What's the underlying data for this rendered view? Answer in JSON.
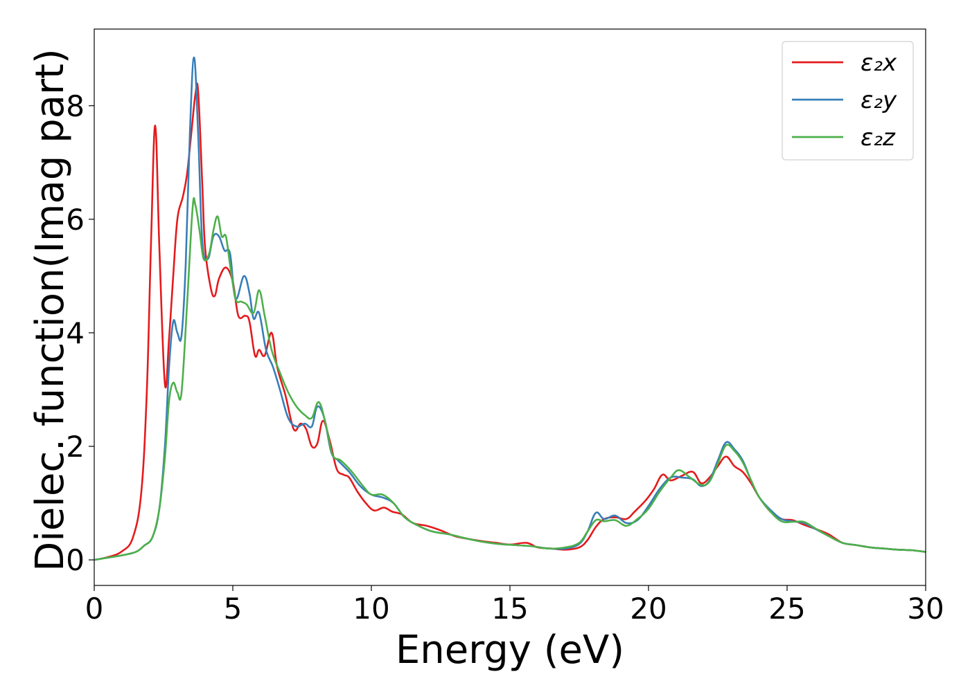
{
  "chart_data": {
    "type": "line",
    "title": "",
    "xlabel": "Energy (eV)",
    "ylabel": "Dielec. function(Imag part)",
    "xlim": [
      0,
      30
    ],
    "ylim": [
      -0.45,
      9.35
    ],
    "xticks": [
      0,
      5,
      10,
      15,
      20,
      25,
      30
    ],
    "yticks": [
      0,
      2,
      4,
      6,
      8
    ],
    "grid": false,
    "legend_position": "top-right",
    "series": [
      {
        "name": "ε₂x",
        "color": "#e41a1c",
        "points": [
          [
            0,
            0
          ],
          [
            0.5,
            0.05
          ],
          [
            1,
            0.15
          ],
          [
            1.4,
            0.4
          ],
          [
            1.7,
            1.2
          ],
          [
            1.9,
            3.0
          ],
          [
            2.05,
            5.6
          ],
          [
            2.2,
            7.65
          ],
          [
            2.35,
            5.5
          ],
          [
            2.55,
            3.1
          ],
          [
            2.7,
            3.9
          ],
          [
            2.85,
            5.0
          ],
          [
            3.0,
            6.0
          ],
          [
            3.2,
            6.4
          ],
          [
            3.35,
            6.8
          ],
          [
            3.5,
            7.5
          ],
          [
            3.65,
            8.2
          ],
          [
            3.75,
            8.25
          ],
          [
            3.9,
            6.6
          ],
          [
            4.0,
            5.5
          ],
          [
            4.2,
            4.8
          ],
          [
            4.35,
            4.65
          ],
          [
            4.5,
            4.95
          ],
          [
            4.75,
            5.15
          ],
          [
            5.0,
            4.9
          ],
          [
            5.2,
            4.3
          ],
          [
            5.45,
            4.3
          ],
          [
            5.6,
            4.2
          ],
          [
            5.8,
            3.6
          ],
          [
            5.95,
            3.7
          ],
          [
            6.15,
            3.6
          ],
          [
            6.4,
            4.0
          ],
          [
            6.6,
            3.4
          ],
          [
            6.9,
            2.9
          ],
          [
            7.2,
            2.3
          ],
          [
            7.45,
            2.4
          ],
          [
            7.65,
            2.3
          ],
          [
            7.85,
            2.0
          ],
          [
            8.05,
            2.05
          ],
          [
            8.25,
            2.45
          ],
          [
            8.5,
            2.1
          ],
          [
            8.75,
            1.6
          ],
          [
            9.0,
            1.5
          ],
          [
            9.2,
            1.45
          ],
          [
            9.5,
            1.2
          ],
          [
            9.8,
            1.0
          ],
          [
            10.1,
            0.87
          ],
          [
            10.45,
            0.92
          ],
          [
            10.75,
            0.85
          ],
          [
            11.1,
            0.8
          ],
          [
            11.5,
            0.65
          ],
          [
            12.0,
            0.6
          ],
          [
            12.5,
            0.52
          ],
          [
            13.0,
            0.42
          ],
          [
            13.5,
            0.37
          ],
          [
            14.0,
            0.33
          ],
          [
            14.5,
            0.3
          ],
          [
            15.0,
            0.27
          ],
          [
            15.6,
            0.3
          ],
          [
            16.0,
            0.22
          ],
          [
            16.5,
            0.2
          ],
          [
            17.0,
            0.18
          ],
          [
            17.5,
            0.22
          ],
          [
            17.8,
            0.35
          ],
          [
            18.1,
            0.58
          ],
          [
            18.4,
            0.72
          ],
          [
            18.8,
            0.75
          ],
          [
            19.2,
            0.72
          ],
          [
            19.5,
            0.85
          ],
          [
            19.9,
            1.05
          ],
          [
            20.2,
            1.25
          ],
          [
            20.5,
            1.5
          ],
          [
            20.8,
            1.4
          ],
          [
            21.2,
            1.48
          ],
          [
            21.6,
            1.55
          ],
          [
            21.9,
            1.35
          ],
          [
            22.2,
            1.45
          ],
          [
            22.5,
            1.65
          ],
          [
            22.8,
            1.82
          ],
          [
            23.1,
            1.65
          ],
          [
            23.4,
            1.55
          ],
          [
            23.7,
            1.35
          ],
          [
            24.0,
            1.1
          ],
          [
            24.4,
            0.85
          ],
          [
            24.8,
            0.72
          ],
          [
            25.2,
            0.7
          ],
          [
            25.6,
            0.62
          ],
          [
            26.0,
            0.55
          ],
          [
            26.5,
            0.45
          ],
          [
            27.0,
            0.3
          ],
          [
            27.5,
            0.26
          ],
          [
            28.0,
            0.22
          ],
          [
            28.5,
            0.2
          ],
          [
            29.0,
            0.18
          ],
          [
            29.5,
            0.17
          ],
          [
            30,
            0.14
          ]
        ]
      },
      {
        "name": "ε₂y",
        "color": "#377eb8",
        "points": [
          [
            0,
            0
          ],
          [
            0.5,
            0.04
          ],
          [
            1,
            0.08
          ],
          [
            1.5,
            0.14
          ],
          [
            1.8,
            0.25
          ],
          [
            2.1,
            0.4
          ],
          [
            2.35,
            0.9
          ],
          [
            2.55,
            2.0
          ],
          [
            2.7,
            3.4
          ],
          [
            2.85,
            4.2
          ],
          [
            3.0,
            4.0
          ],
          [
            3.15,
            3.95
          ],
          [
            3.3,
            5.2
          ],
          [
            3.45,
            7.5
          ],
          [
            3.6,
            8.85
          ],
          [
            3.75,
            7.5
          ],
          [
            3.9,
            5.6
          ],
          [
            4.1,
            5.3
          ],
          [
            4.3,
            5.7
          ],
          [
            4.5,
            5.7
          ],
          [
            4.7,
            5.45
          ],
          [
            4.9,
            5.4
          ],
          [
            5.1,
            4.6
          ],
          [
            5.4,
            5.0
          ],
          [
            5.6,
            4.7
          ],
          [
            5.75,
            4.25
          ],
          [
            5.95,
            4.35
          ],
          [
            6.2,
            3.7
          ],
          [
            6.45,
            3.4
          ],
          [
            6.7,
            3.0
          ],
          [
            7.0,
            2.5
          ],
          [
            7.3,
            2.35
          ],
          [
            7.6,
            2.4
          ],
          [
            7.85,
            2.35
          ],
          [
            8.05,
            2.7
          ],
          [
            8.3,
            2.5
          ],
          [
            8.55,
            1.9
          ],
          [
            8.8,
            1.75
          ],
          [
            9.2,
            1.55
          ],
          [
            9.6,
            1.3
          ],
          [
            10.0,
            1.15
          ],
          [
            10.4,
            1.1
          ],
          [
            10.8,
            1.0
          ],
          [
            11.2,
            0.75
          ],
          [
            11.7,
            0.6
          ],
          [
            12.2,
            0.5
          ],
          [
            12.8,
            0.45
          ],
          [
            13.4,
            0.38
          ],
          [
            14.0,
            0.32
          ],
          [
            14.6,
            0.28
          ],
          [
            15.2,
            0.26
          ],
          [
            15.8,
            0.24
          ],
          [
            16.4,
            0.2
          ],
          [
            17.0,
            0.2
          ],
          [
            17.5,
            0.28
          ],
          [
            17.8,
            0.5
          ],
          [
            18.1,
            0.83
          ],
          [
            18.4,
            0.72
          ],
          [
            18.8,
            0.78
          ],
          [
            19.2,
            0.65
          ],
          [
            19.6,
            0.7
          ],
          [
            20.0,
            0.95
          ],
          [
            20.4,
            1.25
          ],
          [
            20.8,
            1.45
          ],
          [
            21.2,
            1.45
          ],
          [
            21.6,
            1.42
          ],
          [
            21.9,
            1.3
          ],
          [
            22.2,
            1.4
          ],
          [
            22.5,
            1.75
          ],
          [
            22.8,
            2.07
          ],
          [
            23.1,
            1.95
          ],
          [
            23.4,
            1.75
          ],
          [
            23.7,
            1.4
          ],
          [
            24.0,
            1.1
          ],
          [
            24.4,
            0.88
          ],
          [
            24.8,
            0.72
          ],
          [
            25.2,
            0.68
          ],
          [
            25.6,
            0.65
          ],
          [
            26.0,
            0.55
          ],
          [
            26.5,
            0.42
          ],
          [
            27.0,
            0.3
          ],
          [
            27.5,
            0.26
          ],
          [
            28.0,
            0.22
          ],
          [
            28.5,
            0.2
          ],
          [
            29.0,
            0.18
          ],
          [
            29.5,
            0.17
          ],
          [
            30,
            0.14
          ]
        ]
      },
      {
        "name": "ε₂z",
        "color": "#4daf4a",
        "points": [
          [
            0,
            0
          ],
          [
            0.5,
            0.04
          ],
          [
            1,
            0.08
          ],
          [
            1.5,
            0.14
          ],
          [
            1.8,
            0.25
          ],
          [
            2.1,
            0.4
          ],
          [
            2.35,
            0.9
          ],
          [
            2.55,
            1.8
          ],
          [
            2.7,
            2.8
          ],
          [
            2.85,
            3.12
          ],
          [
            3.0,
            2.95
          ],
          [
            3.15,
            2.95
          ],
          [
            3.35,
            4.5
          ],
          [
            3.55,
            6.2
          ],
          [
            3.65,
            6.25
          ],
          [
            3.8,
            5.8
          ],
          [
            3.95,
            5.3
          ],
          [
            4.15,
            5.4
          ],
          [
            4.3,
            5.8
          ],
          [
            4.45,
            6.05
          ],
          [
            4.6,
            5.7
          ],
          [
            4.75,
            5.7
          ],
          [
            4.9,
            5.2
          ],
          [
            5.1,
            4.6
          ],
          [
            5.3,
            4.55
          ],
          [
            5.5,
            4.5
          ],
          [
            5.75,
            4.35
          ],
          [
            5.95,
            4.75
          ],
          [
            6.15,
            4.3
          ],
          [
            6.4,
            3.7
          ],
          [
            6.7,
            3.3
          ],
          [
            7.0,
            2.95
          ],
          [
            7.3,
            2.7
          ],
          [
            7.6,
            2.55
          ],
          [
            7.85,
            2.5
          ],
          [
            8.1,
            2.78
          ],
          [
            8.35,
            2.4
          ],
          [
            8.6,
            1.85
          ],
          [
            8.9,
            1.75
          ],
          [
            9.3,
            1.55
          ],
          [
            9.7,
            1.3
          ],
          [
            10.0,
            1.15
          ],
          [
            10.4,
            1.15
          ],
          [
            10.8,
            1.0
          ],
          [
            11.2,
            0.75
          ],
          [
            11.7,
            0.6
          ],
          [
            12.2,
            0.5
          ],
          [
            12.8,
            0.45
          ],
          [
            13.4,
            0.38
          ],
          [
            14.0,
            0.32
          ],
          [
            14.6,
            0.28
          ],
          [
            15.2,
            0.26
          ],
          [
            15.8,
            0.24
          ],
          [
            16.4,
            0.2
          ],
          [
            17.0,
            0.22
          ],
          [
            17.5,
            0.3
          ],
          [
            17.8,
            0.5
          ],
          [
            18.1,
            0.7
          ],
          [
            18.4,
            0.68
          ],
          [
            18.8,
            0.7
          ],
          [
            19.2,
            0.6
          ],
          [
            19.6,
            0.72
          ],
          [
            20.0,
            0.9
          ],
          [
            20.4,
            1.2
          ],
          [
            20.8,
            1.45
          ],
          [
            21.1,
            1.58
          ],
          [
            21.5,
            1.45
          ],
          [
            21.9,
            1.32
          ],
          [
            22.2,
            1.38
          ],
          [
            22.5,
            1.7
          ],
          [
            22.8,
            2.02
          ],
          [
            23.1,
            1.92
          ],
          [
            23.4,
            1.72
          ],
          [
            23.7,
            1.4
          ],
          [
            24.0,
            1.1
          ],
          [
            24.4,
            0.85
          ],
          [
            24.8,
            0.68
          ],
          [
            25.2,
            0.67
          ],
          [
            25.6,
            0.67
          ],
          [
            26.0,
            0.56
          ],
          [
            26.5,
            0.42
          ],
          [
            27.0,
            0.3
          ],
          [
            27.5,
            0.26
          ],
          [
            28.0,
            0.22
          ],
          [
            28.5,
            0.2
          ],
          [
            29.0,
            0.18
          ],
          [
            29.5,
            0.17
          ],
          [
            30,
            0.14
          ]
        ]
      }
    ]
  }
}
